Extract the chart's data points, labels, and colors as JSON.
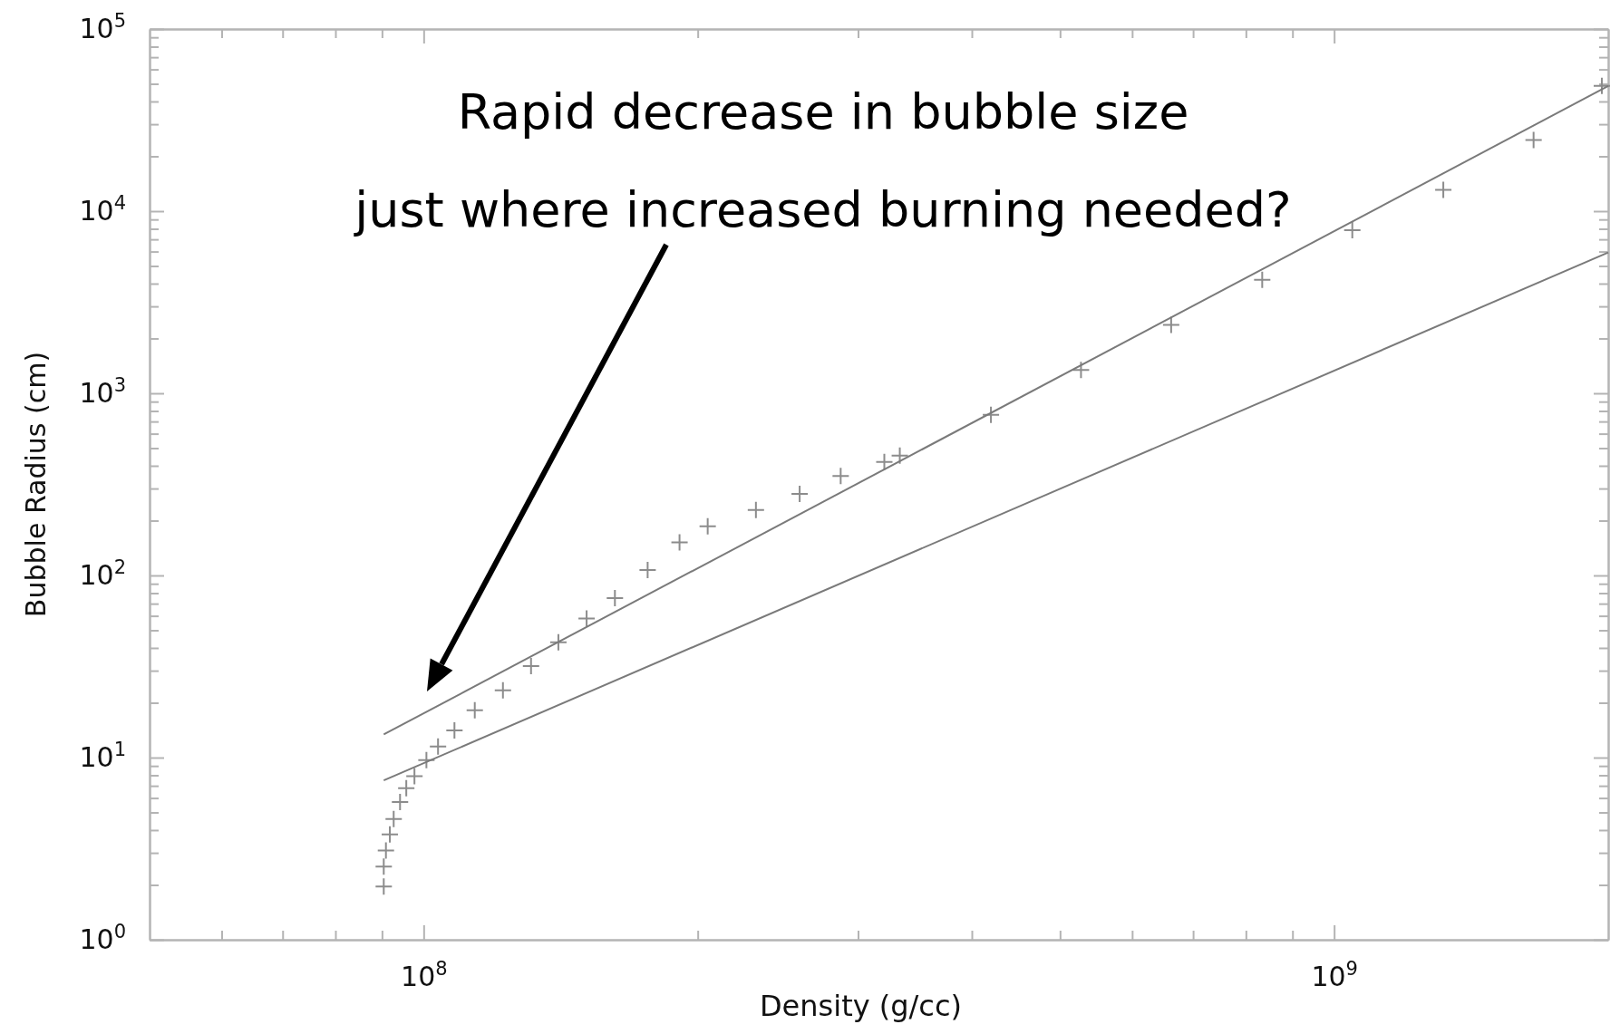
{
  "chart_data": {
    "type": "scatter",
    "xlabel": "Density (g/cc)",
    "ylabel": "Bubble Radius (cm)",
    "log": "xy",
    "grid": false,
    "marker": "cross",
    "xlim": [
      50000000,
      2000000000
    ],
    "xticks": [
      {
        "value": 60000000,
        "label": null
      },
      {
        "value": 70000000,
        "label": null
      },
      {
        "value": 80000000,
        "label": null
      },
      {
        "value": 90000000,
        "label": null
      },
      {
        "value": 100000000,
        "label": "10$^{8}$"
      },
      {
        "value": 200000000,
        "label": null
      },
      {
        "value": 300000000,
        "label": null
      },
      {
        "value": 400000000,
        "label": null
      },
      {
        "value": 500000000,
        "label": null
      },
      {
        "value": 600000000,
        "label": null
      },
      {
        "value": 700000000,
        "label": null
      },
      {
        "value": 800000000,
        "label": null
      },
      {
        "value": 900000000,
        "label": null
      },
      {
        "value": 1000000000,
        "label": "10$^{9}$"
      }
    ],
    "ylim": [
      1,
      100000
    ],
    "yticks": [
      {
        "value": 1,
        "label": "10$^{0}$"
      },
      {
        "value": 2,
        "label": null
      },
      {
        "value": 3,
        "label": null
      },
      {
        "value": 4,
        "label": null
      },
      {
        "value": 5,
        "label": null
      },
      {
        "value": 6,
        "label": null
      },
      {
        "value": 7,
        "label": null
      },
      {
        "value": 8,
        "label": null
      },
      {
        "value": 9,
        "label": null
      },
      {
        "value": 10,
        "label": "10$^{1}$"
      },
      {
        "value": 20,
        "label": null
      },
      {
        "value": 30,
        "label": null
      },
      {
        "value": 40,
        "label": null
      },
      {
        "value": 50,
        "label": null
      },
      {
        "value": 60,
        "label": null
      },
      {
        "value": 70,
        "label": null
      },
      {
        "value": 80,
        "label": null
      },
      {
        "value": 90,
        "label": null
      },
      {
        "value": 100,
        "label": "10$^{2}$"
      },
      {
        "value": 200,
        "label": null
      },
      {
        "value": 300,
        "label": null
      },
      {
        "value": 400,
        "label": null
      },
      {
        "value": 500,
        "label": null
      },
      {
        "value": 600,
        "label": null
      },
      {
        "value": 700,
        "label": null
      },
      {
        "value": 800,
        "label": null
      },
      {
        "value": 900,
        "label": null
      },
      {
        "value": 1000,
        "label": "10$^{3}$"
      },
      {
        "value": 2000,
        "label": null
      },
      {
        "value": 3000,
        "label": null
      },
      {
        "value": 4000,
        "label": null
      },
      {
        "value": 5000,
        "label": null
      },
      {
        "value": 6000,
        "label": null
      },
      {
        "value": 7000,
        "label": null
      },
      {
        "value": 8000,
        "label": null
      },
      {
        "value": 9000,
        "label": null
      },
      {
        "value": 10000,
        "label": "10$^{4}$"
      },
      {
        "value": 20000,
        "label": null
      },
      {
        "value": 30000,
        "label": null
      },
      {
        "value": 40000,
        "label": null
      },
      {
        "value": 50000,
        "label": null
      },
      {
        "value": 60000,
        "label": null
      },
      {
        "value": 70000,
        "label": null
      },
      {
        "value": 80000,
        "label": null
      },
      {
        "value": 90000,
        "label": null
      },
      {
        "value": 100000,
        "label": "10$^{5}$"
      }
    ],
    "series": [
      {
        "color": "#8c8c8c",
        "x": [
          90400000,
          90400000,
          90900000,
          91800000,
          92700000,
          94200000,
          95700000,
          97700000,
          100700000,
          103700000,
          108100000,
          113800000,
          122200000,
          131200000,
          140600000,
          151000000,
          162200000,
          176200000,
          191000000,
          205100000,
          231700000,
          258800000,
          287100000,
          320600000,
          333400000,
          419800000,
          527200000,
          662200000,
          833700000,
          1047000000,
          1318000000,
          1656000000,
          1968000000
        ],
        "values": [
          1.96,
          2.52,
          3.09,
          3.79,
          4.6,
          5.7,
          6.8,
          7.9,
          9.7,
          11.5,
          14.1,
          18.2,
          23.4,
          31.8,
          43,
          58,
          75,
          107,
          152,
          186,
          229,
          280,
          352,
          420,
          455,
          762,
          1343,
          2372,
          4200,
          7870,
          13100,
          24600,
          48700
        ]
      },
      {
        "type": "line",
        "color": "#7a7a7a",
        "marker": "none",
        "x": [
          90400000,
          2000000000
        ],
        "values": [
          13.4,
          48600
        ]
      },
      {
        "type": "line",
        "color": "#7a7a7a",
        "marker": "none",
        "x": [
          90400000,
          2000000000
        ],
        "values": [
          7.5,
          5930
        ]
      }
    ],
    "annotations": [
      "Rapid decrease in bubble size\njust where increased burning needed?"
    ]
  }
}
